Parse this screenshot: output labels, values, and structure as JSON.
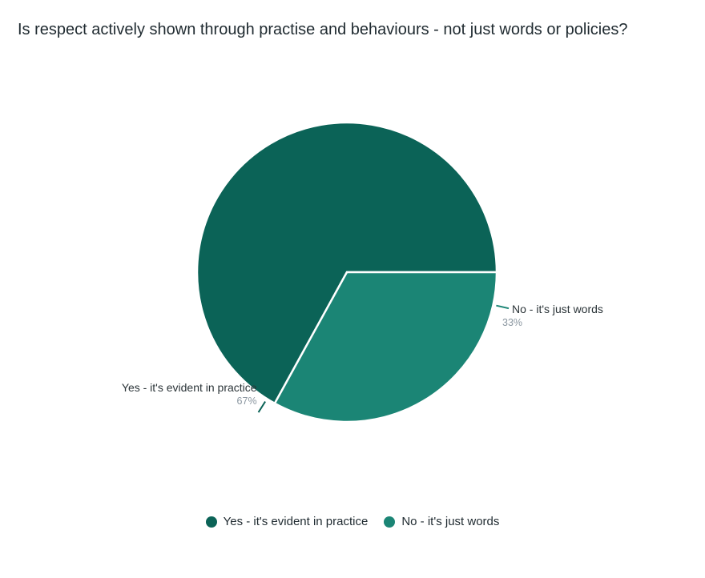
{
  "chart_data": {
    "type": "pie",
    "title": "Is respect actively shown through practise and behaviours - not just words or policies?",
    "slices": [
      {
        "label": "Yes - it's evident in practice",
        "value": 67,
        "percent_label": "67%",
        "color": "#0b6357"
      },
      {
        "label": "No - it's just words",
        "value": 33,
        "percent_label": "33%",
        "color": "#1b8575"
      }
    ],
    "legend": {
      "position": "bottom"
    }
  }
}
